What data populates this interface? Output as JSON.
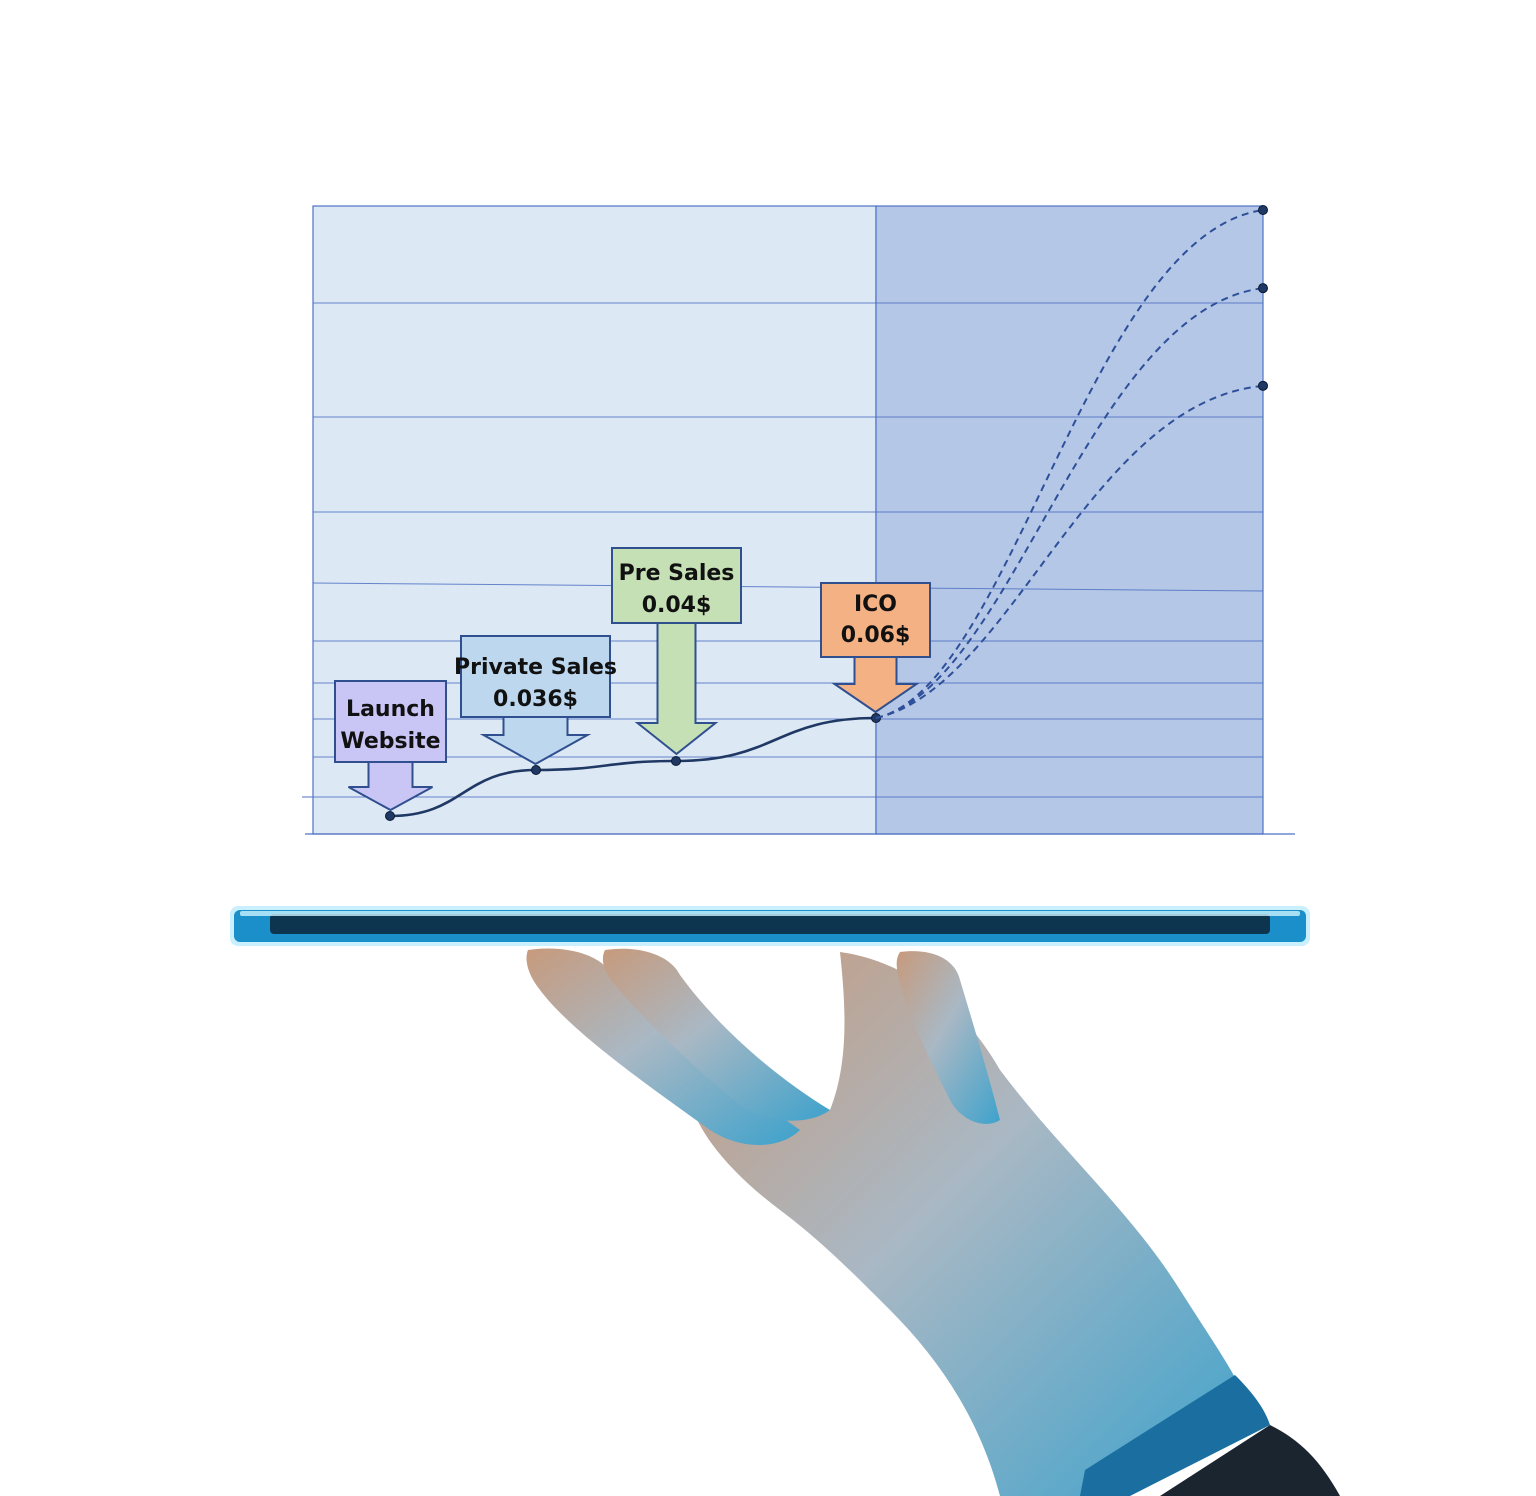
{
  "chart_data": {
    "type": "line",
    "title": "",
    "xlabel": "",
    "ylabel": "",
    "grid": true,
    "milestones": [
      {
        "label_line1": "Launch",
        "label_line2": "Website",
        "stage": 0,
        "color": "#c9c5f5"
      },
      {
        "label_line1": "Private Sales",
        "label_line2": "0.036$",
        "stage": 1,
        "price": 0.036,
        "color": "#bdd7ee"
      },
      {
        "label_line1": "Pre Sales",
        "label_line2": "0.04$",
        "stage": 2,
        "price": 0.04,
        "color": "#c5e0b4"
      },
      {
        "label_line1": "ICO",
        "label_line2": "0.06$",
        "stage": 3,
        "price": 0.06,
        "color": "#f4b183"
      }
    ],
    "series": [
      {
        "style": "solid",
        "points": [
          [
            0,
            0.02
          ],
          [
            1,
            0.036
          ],
          [
            2,
            0.04
          ],
          [
            3,
            0.06
          ]
        ]
      },
      {
        "style": "dashed",
        "points": [
          [
            3,
            0.06
          ],
          [
            5.75,
            0.32
          ]
        ]
      },
      {
        "style": "dashed",
        "points": [
          [
            3,
            0.06
          ],
          [
            5.75,
            0.28
          ]
        ]
      },
      {
        "style": "dashed",
        "points": [
          [
            3,
            0.06
          ],
          [
            5.75,
            0.23
          ]
        ]
      }
    ],
    "colors": {
      "past_region": "#dde8f5",
      "future_region": "#b4c7e6",
      "gridline": "#4f72c4",
      "line": "#1f3864"
    }
  },
  "illustration": {
    "tablet_color": "#1a8fc9",
    "hand_color": "#c4977a"
  }
}
